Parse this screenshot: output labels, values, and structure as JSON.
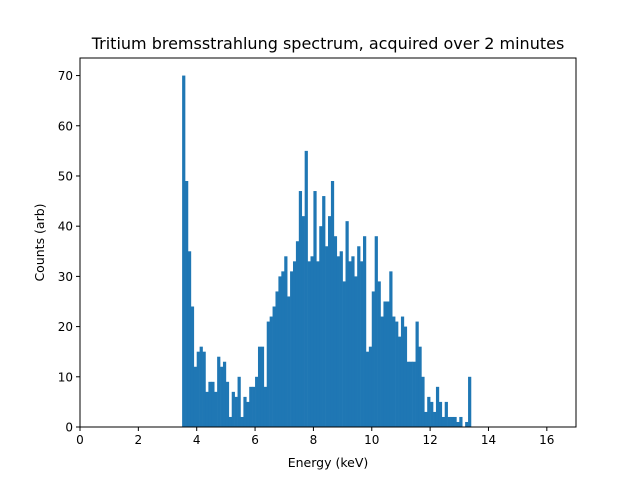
{
  "chart_data": {
    "type": "bar",
    "title": "Tritium bremsstrahlung spectrum, acquired over 2 minutes",
    "xlabel": "Energy (keV)",
    "ylabel": "Counts (arb)",
    "xlim": [
      0,
      17
    ],
    "ylim": [
      0,
      73.5
    ],
    "xticks": [
      0,
      2,
      4,
      6,
      8,
      10,
      12,
      14,
      16
    ],
    "yticks": [
      0,
      10,
      20,
      30,
      40,
      50,
      60,
      70
    ],
    "bar_color": "#1f77b4",
    "bin_start": 3.5,
    "bin_width": 0.1,
    "values": [
      70,
      49,
      35,
      24,
      12,
      15,
      16,
      15,
      7,
      9,
      9,
      7,
      14,
      12,
      13,
      9,
      2,
      7,
      6,
      10,
      2,
      6,
      5,
      8,
      8,
      10,
      16,
      16,
      8,
      21,
      22,
      24,
      27,
      30,
      31,
      34,
      26,
      31,
      33,
      37,
      47,
      42,
      55,
      33,
      34,
      47,
      33,
      40,
      46,
      36,
      42,
      49,
      38,
      34,
      35,
      29,
      41,
      33,
      34,
      30,
      36,
      33,
      38,
      15,
      16,
      27,
      38,
      29,
      22,
      25,
      25,
      31,
      22,
      21,
      18,
      22,
      20,
      13,
      13,
      13,
      21,
      16,
      10,
      3,
      6,
      5,
      3,
      8,
      5,
      2,
      5,
      2,
      2,
      2,
      1,
      2,
      0,
      1,
      10
    ],
    "grid": false
  }
}
